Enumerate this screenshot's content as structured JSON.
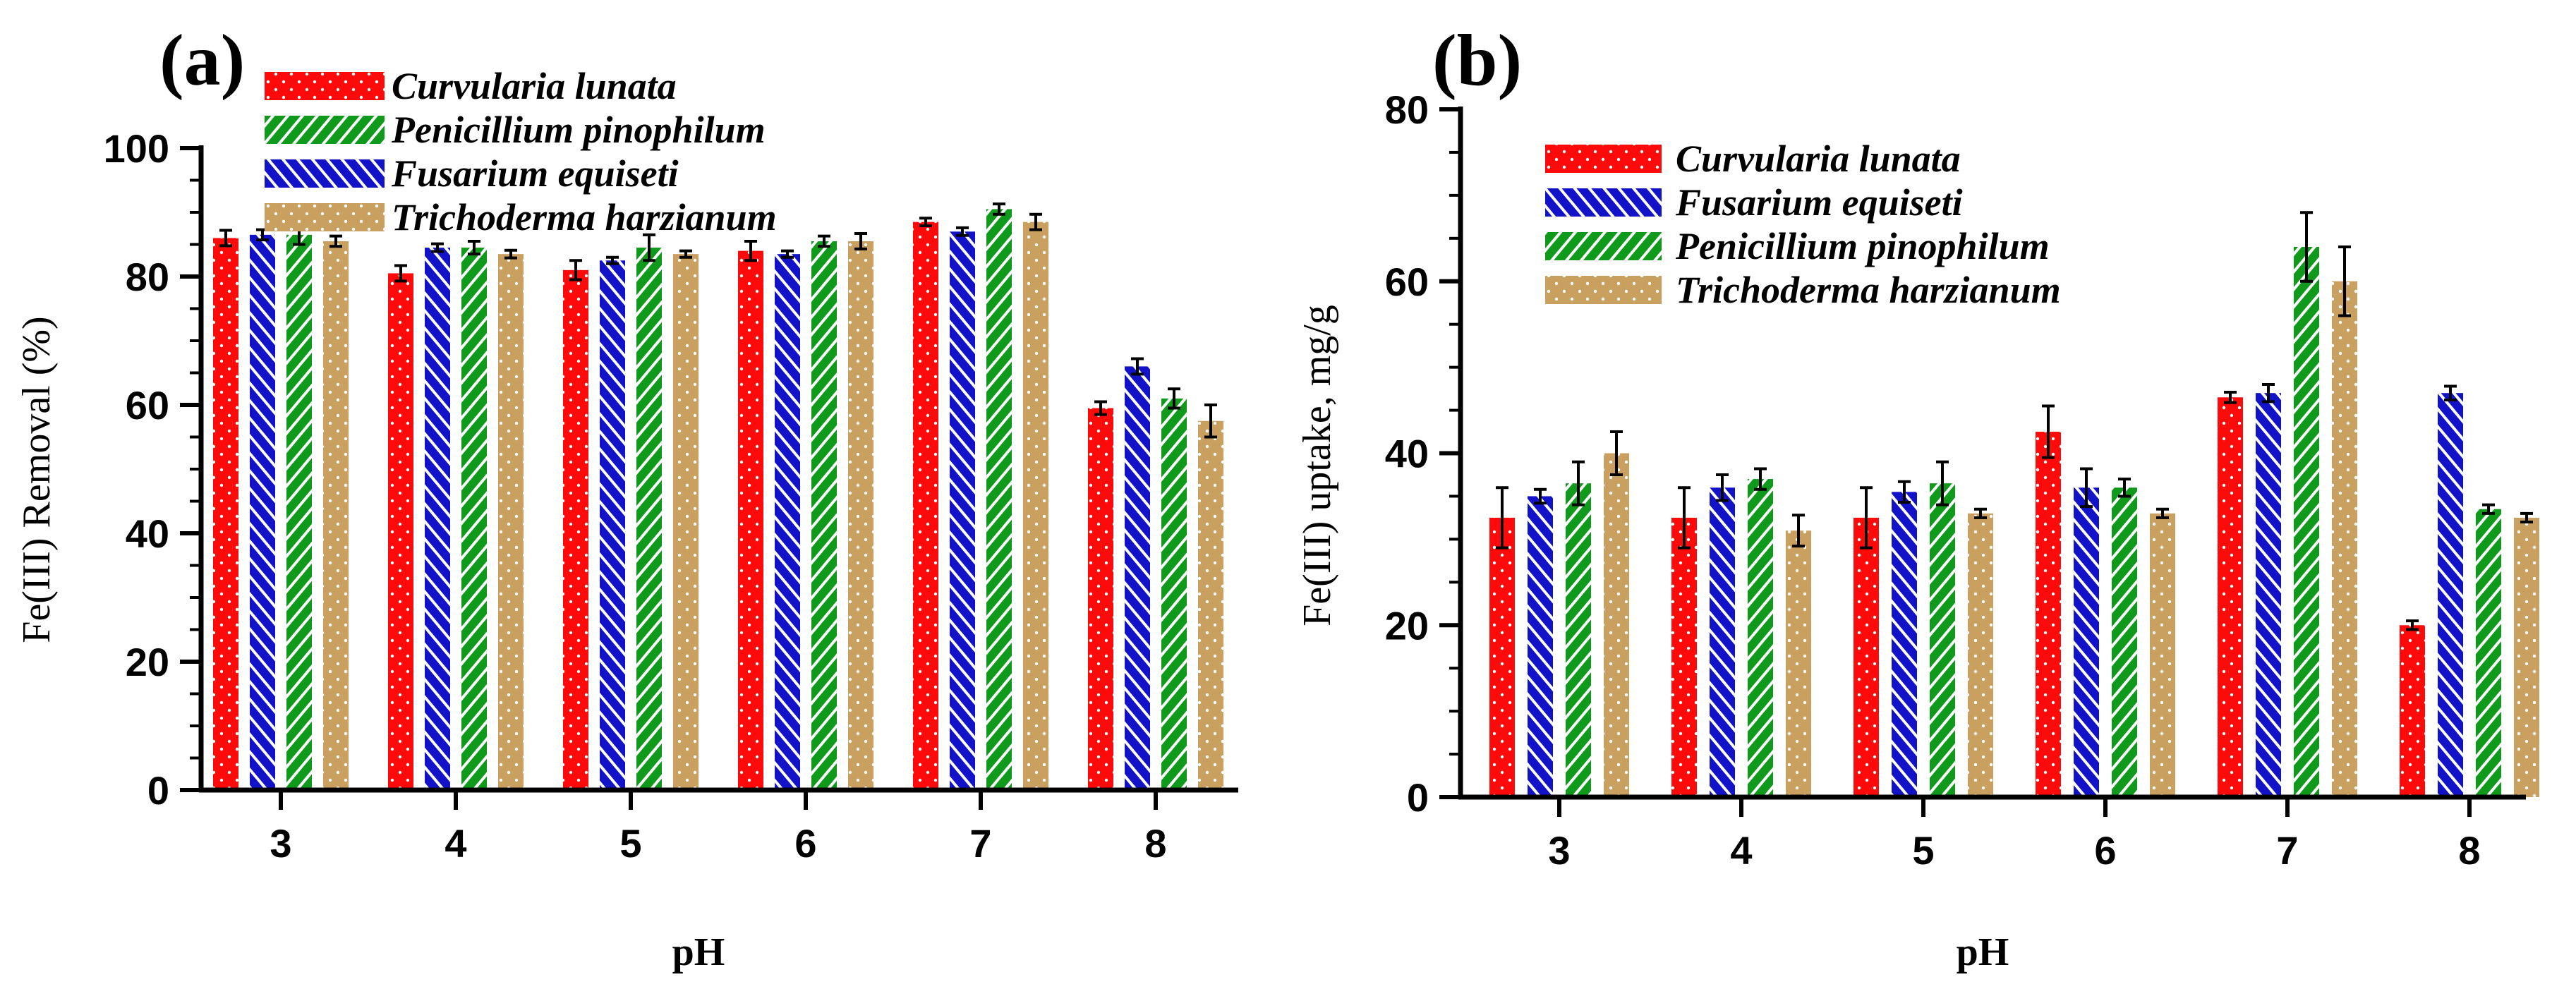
{
  "colors": {
    "curvularia": "#ff0a0a",
    "penicillium": "#0f9a1c",
    "fusarium": "#1212c8",
    "trichoderma": "#c9a05f"
  },
  "chart_data": [
    {
      "type": "bar",
      "panel_label": "(a)",
      "categories": [
        "3",
        "4",
        "5",
        "6",
        "7",
        "8"
      ],
      "xlabel": "pH",
      "ylabel": "Fe(III) Removal (%)",
      "ylim": [
        0,
        100
      ],
      "yticks": [
        "0",
        "20",
        "40",
        "60",
        "80",
        "100"
      ],
      "error_bars": true,
      "series": [
        {
          "name": "Curvularia lunata",
          "key": "curvularia",
          "pattern": "dots",
          "values": [
            86,
            80.5,
            81,
            84,
            88.5,
            59.5
          ],
          "errors": [
            1.2,
            1.2,
            1.5,
            1.5,
            0.6,
            1
          ]
        },
        {
          "name": "Fusarium equiseti",
          "key": "fusarium",
          "pattern": "backslash",
          "values": [
            86.5,
            84.5,
            82.5,
            83.5,
            87,
            66
          ],
          "errors": [
            0.8,
            0.6,
            0.5,
            0.5,
            0.6,
            1.2
          ]
        },
        {
          "name": "Penicillium pinophilum",
          "key": "penicillium",
          "pattern": "slash",
          "values": [
            86.5,
            84.5,
            84.5,
            85.5,
            90.5,
            61
          ],
          "errors": [
            1.5,
            1,
            2,
            0.8,
            0.8,
            1.5
          ]
        },
        {
          "name": "Trichoderma harzianum",
          "key": "trichoderma",
          "pattern": "dots",
          "values": [
            85.5,
            83.5,
            83.5,
            85.5,
            88.5,
            57.5
          ],
          "errors": [
            0.8,
            0.6,
            0.5,
            1.2,
            1.2,
            2.5
          ]
        }
      ],
      "legend": [
        "Curvularia lunata",
        "Penicillium pinophilum",
        "Fusarium equiseti",
        "Trichoderma harzianum"
      ],
      "legend_keys": [
        "curvularia",
        "penicillium",
        "fusarium",
        "trichoderma"
      ],
      "legend_position": "top-left"
    },
    {
      "type": "bar",
      "panel_label": "(b)",
      "categories": [
        "3",
        "4",
        "5",
        "6",
        "7",
        "8"
      ],
      "xlabel": "pH",
      "ylabel": "Fe(III) uptake, mg/g",
      "ylim": [
        0,
        80
      ],
      "yticks": [
        "0",
        "20",
        "40",
        "60",
        "80"
      ],
      "error_bars": true,
      "series": [
        {
          "name": "Curvularia lunata",
          "key": "curvularia",
          "pattern": "dots",
          "values": [
            32.5,
            32.5,
            32.5,
            42.5,
            46.5,
            20
          ],
          "errors": [
            3.5,
            3.5,
            3.5,
            3,
            0.6,
            0.5
          ]
        },
        {
          "name": "Fusarium equiseti",
          "key": "fusarium",
          "pattern": "backslash",
          "values": [
            35,
            36,
            35.5,
            36,
            47,
            47
          ],
          "errors": [
            0.8,
            1.5,
            1.2,
            2.2,
            1,
            0.8
          ]
        },
        {
          "name": "Penicillium pinophilum",
          "key": "penicillium",
          "pattern": "slash",
          "values": [
            36.5,
            37,
            36.5,
            36,
            64,
            33.5
          ],
          "errors": [
            2.5,
            1.2,
            2.5,
            1,
            4,
            0.5
          ]
        },
        {
          "name": "Trichoderma harzianum",
          "key": "trichoderma",
          "pattern": "dots",
          "values": [
            40,
            31,
            33,
            33,
            60,
            32.5
          ],
          "errors": [
            2.5,
            1.8,
            0.5,
            0.5,
            4,
            0.5
          ]
        }
      ],
      "legend": [
        "Curvularia lunata",
        "Fusarium equiseti",
        "Penicillium pinophilum",
        "Trichoderma harzianum"
      ],
      "legend_keys": [
        "curvularia",
        "fusarium",
        "penicillium",
        "trichoderma"
      ],
      "legend_position": "top-left"
    }
  ]
}
